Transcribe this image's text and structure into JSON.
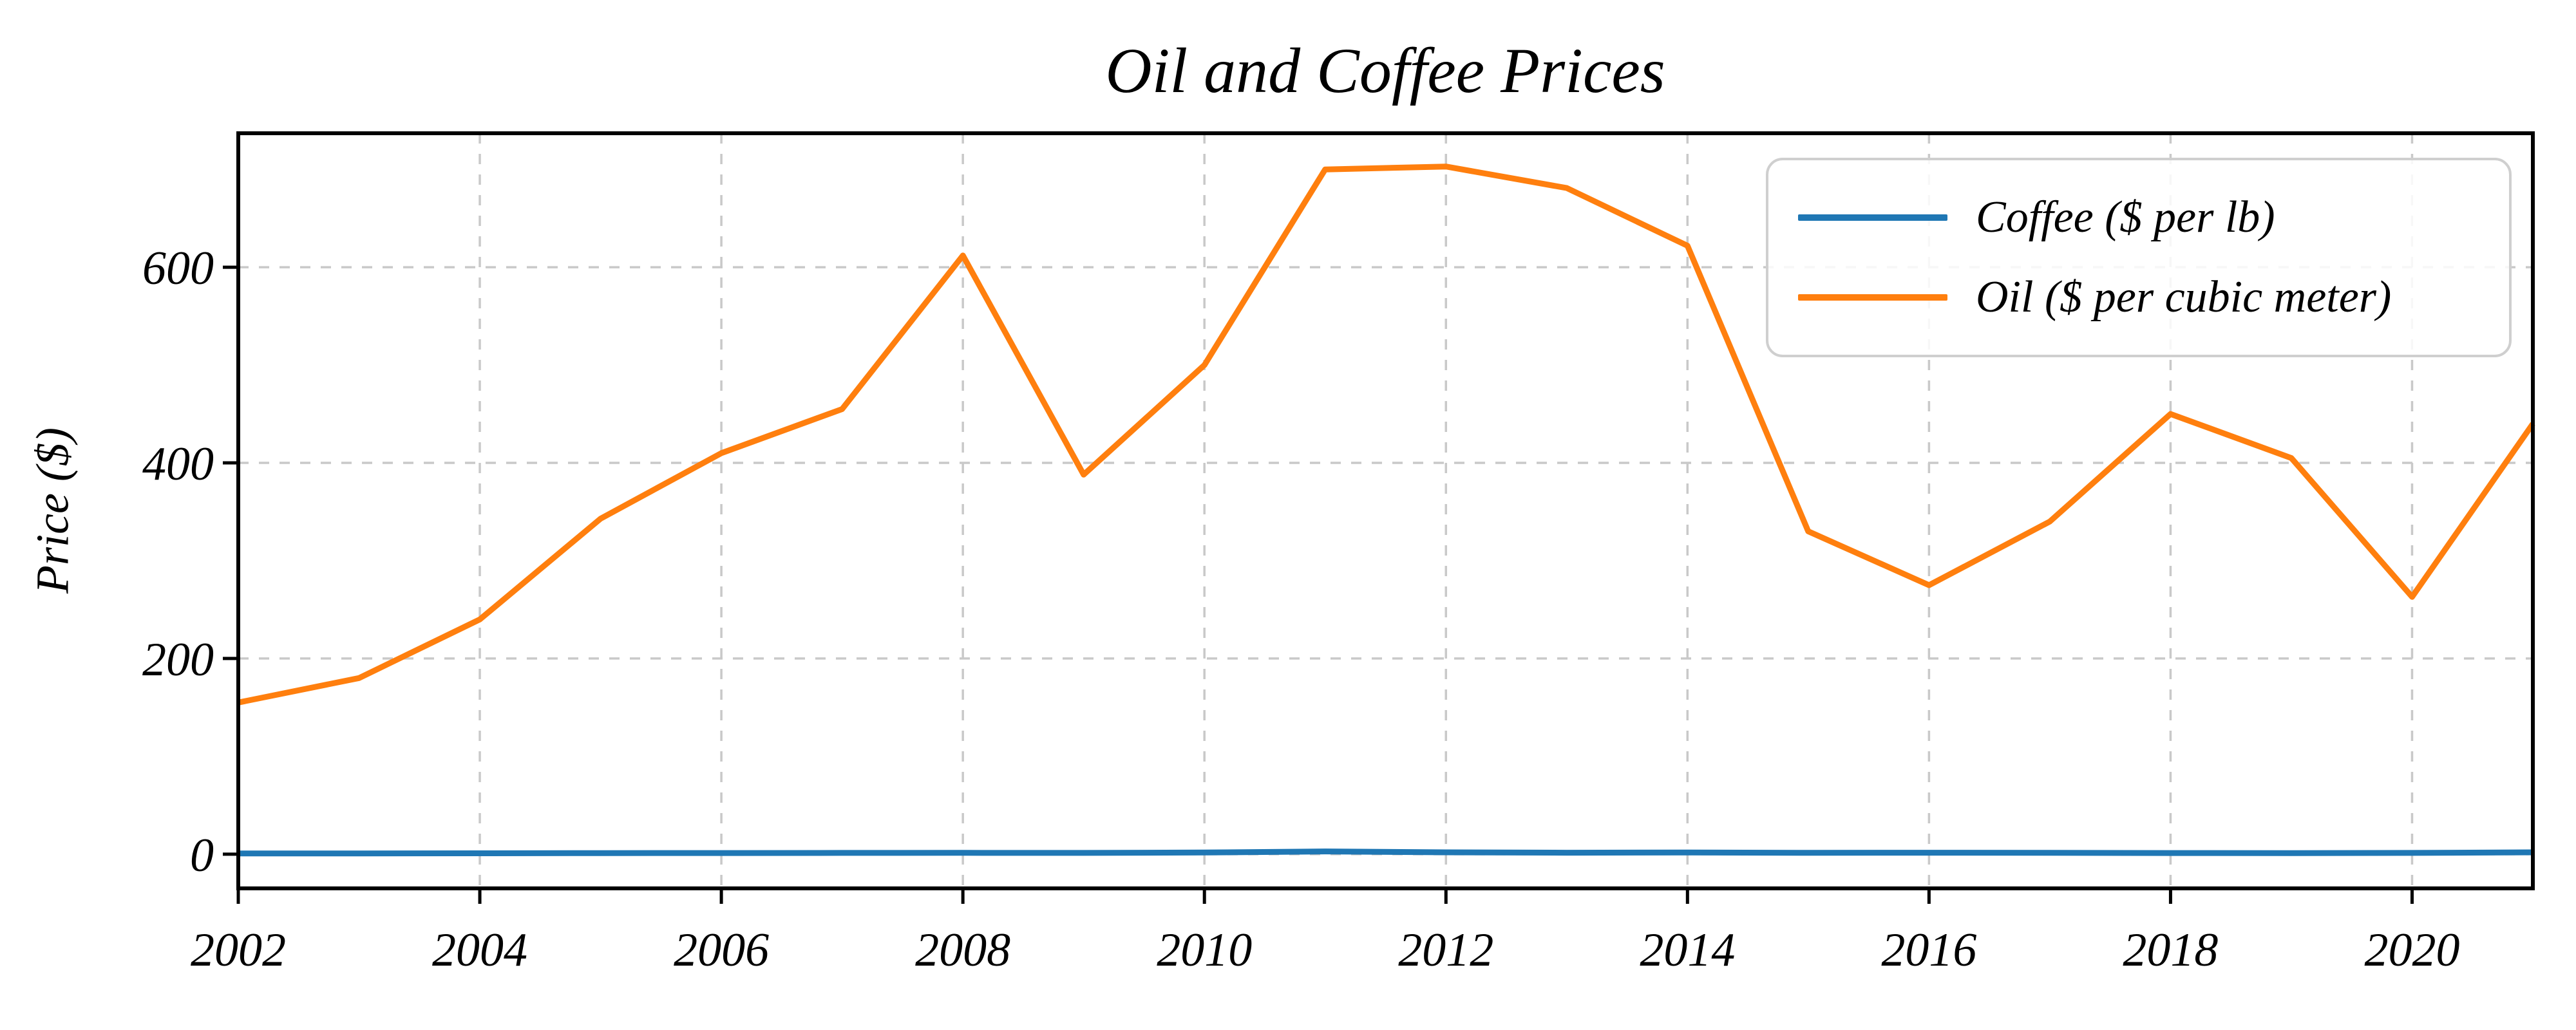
{
  "chart_data": {
    "type": "line",
    "title": "Oil and Coffee Prices",
    "ylabel": "Price ($)",
    "x": [
      2002,
      2003,
      2004,
      2005,
      2006,
      2007,
      2008,
      2009,
      2010,
      2011,
      2012,
      2013,
      2014,
      2015,
      2016,
      2017,
      2018,
      2019,
      2020,
      2021
    ],
    "series": [
      {
        "name": "Coffee ($ per lb)",
        "color": "#1f77b4",
        "values": [
          0.65,
          0.7,
          0.85,
          1.05,
          1.15,
          1.25,
          1.35,
          1.25,
          1.65,
          2.75,
          1.85,
          1.45,
          1.75,
          1.35,
          1.45,
          1.35,
          1.15,
          1.05,
          1.25,
          1.85
        ]
      },
      {
        "name": "Oil ($ per cubic meter)",
        "color": "#ff7f0e",
        "values": [
          155,
          180,
          240,
          343,
          410,
          455,
          612,
          388,
          500,
          700,
          703,
          681,
          622,
          330,
          275,
          340,
          450,
          405,
          263,
          440
        ]
      }
    ],
    "xticks": [
      2002,
      2004,
      2006,
      2008,
      2010,
      2012,
      2014,
      2016,
      2018,
      2020
    ],
    "yticks": [
      0,
      200,
      400,
      600
    ],
    "xlim": [
      2002,
      2021
    ],
    "ylim": [
      -35,
      737
    ],
    "grid": true,
    "grid_style": "dashed",
    "legend_position": "upper right",
    "colors": {
      "axis": "#000000",
      "gridline": "#c9c9c9",
      "legend_border": "#cfcfcf",
      "background": "#ffffff"
    }
  }
}
